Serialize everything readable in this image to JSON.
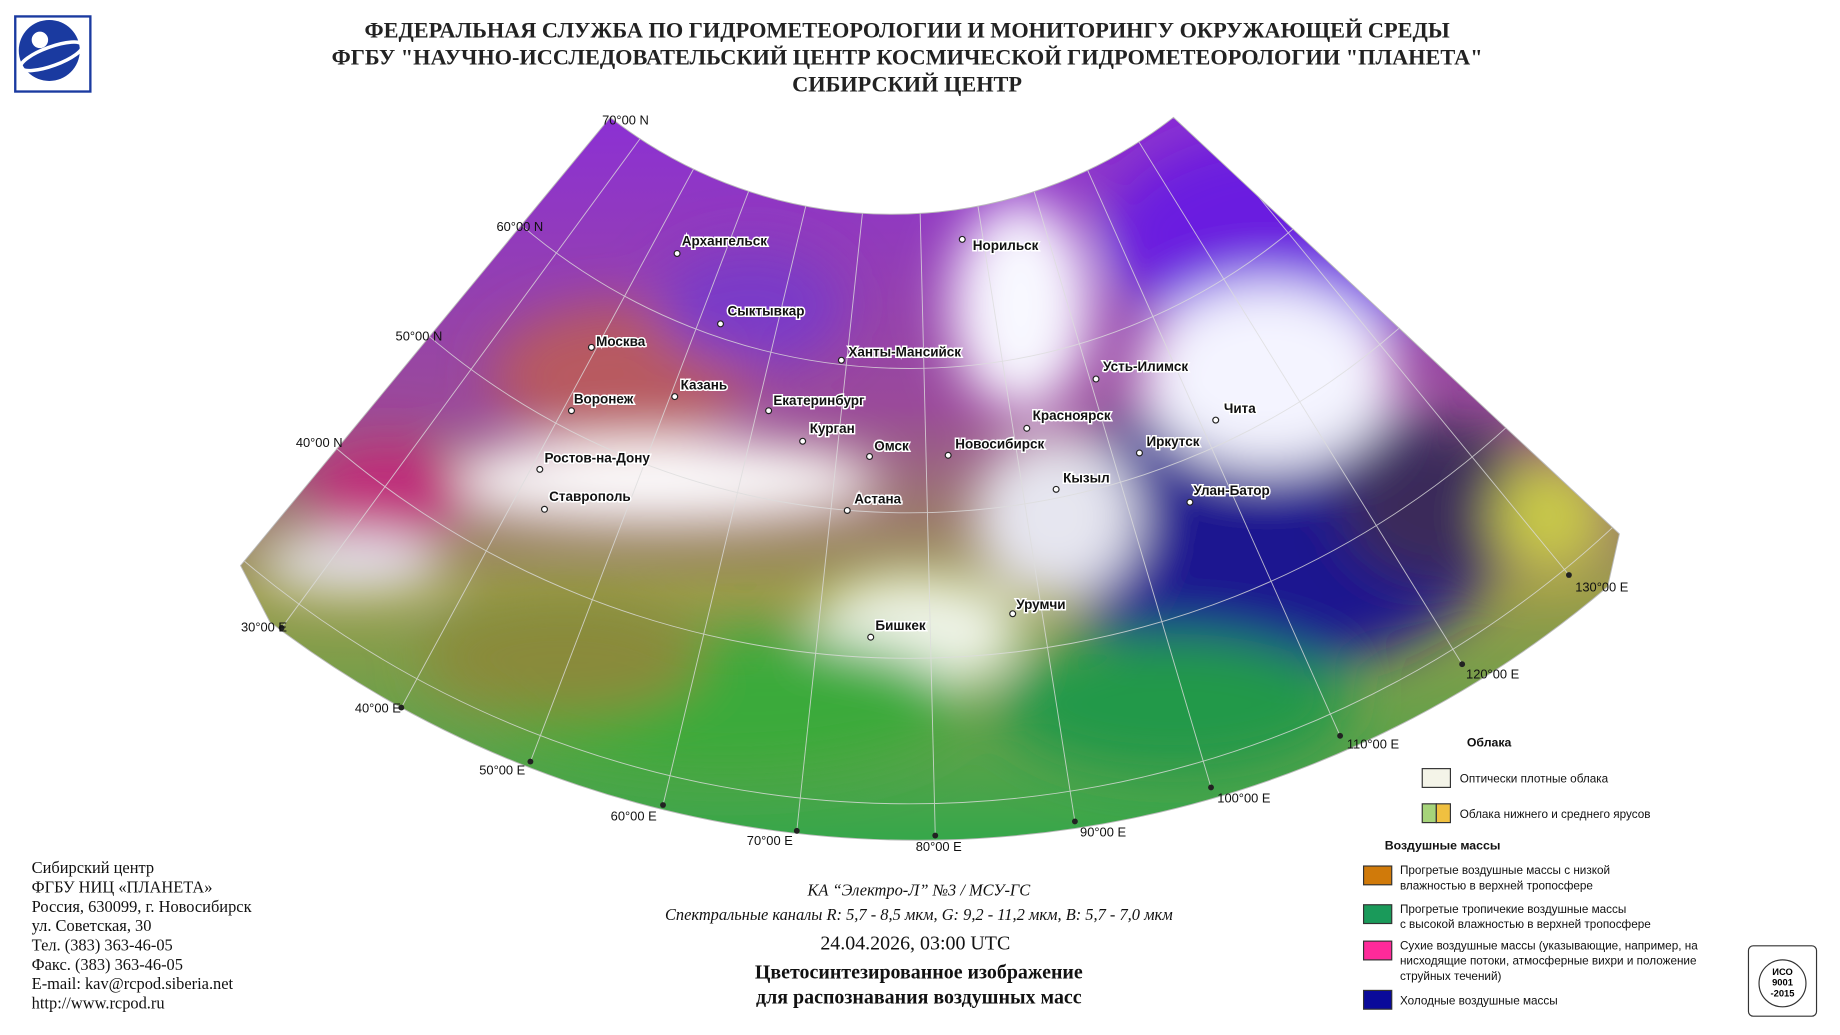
{
  "header": {
    "lines": [
      "ФЕДЕРАЛЬНАЯ СЛУЖБА ПО ГИДРОМЕТЕОРОЛОГИИ И МОНИТОРИНГУ ОКРУЖАЮЩЕЙ СРЕДЫ",
      "ФГБУ \"НАУЧНО-ИССЛЕДОВАТЕЛЬСКИЙ ЦЕНТР КОСМИЧЕСКОЙ ГИДРОМЕТЕОРОЛОГИИ \"ПЛАНЕТА\"",
      "СИБИРСКИЙ ЦЕНТР"
    ]
  },
  "map": {
    "lat_labels": [
      "70°00 N",
      "60°00 N",
      "50°00 N",
      "40°00 N"
    ],
    "lon_labels": [
      "30°00 E",
      "40°00 E",
      "50°00 E",
      "60°00 E",
      "70°00 E",
      "80°00 E",
      "90°00 E",
      "100°00 E",
      "110°00 E",
      "120°00 E",
      "130°00 E"
    ],
    "cities": [
      "Архангельск",
      "Норильск",
      "Сыктывкар",
      "Москва",
      "Ханты-Мансийск",
      "Усть-Илимск",
      "Казань",
      "Воронеж",
      "Екатеринбург",
      "Красноярск",
      "Чита",
      "Курган",
      "Иркутск",
      "Омск",
      "Новосибирск",
      "Ростов-на-Дону",
      "Кызыл",
      "Улан-Батор",
      "Ставрополь",
      "Астана",
      "Урумчи",
      "Бишкек"
    ]
  },
  "legend": {
    "clouds_title": "Облака",
    "clouds": [
      {
        "lines": [
          "Оптически плотные облака"
        ]
      },
      {
        "lines": [
          "Облака нижнего и среднего ярусов"
        ]
      }
    ],
    "air_title": "Воздушные массы",
    "air": [
      {
        "lines": [
          "Прогретые воздушные массы с низкой",
          "влажностью в верхней тропосфере"
        ]
      },
      {
        "lines": [
          "Прогретые тропичекие воздушные массы",
          "с высокой влажностью в верхней тропосфере"
        ]
      },
      {
        "lines": [
          "Сухие воздушные массы (указывающие, например, на",
          "нисходящие потоки, атмосферные вихри и положение",
          "струйных течений)"
        ]
      },
      {
        "lines": [
          "Холодные воздушные массы"
        ]
      }
    ]
  },
  "caption": {
    "satellite": "КА “Электро-Л” №3 / МСУ-ГС",
    "channels": "Спектральные каналы R: 5,7 - 8,5 мкм, G: 9,2 - 11,2 мкм, B: 5,7 - 7,0 мкм",
    "datetime": "24.04.2026, 03:00 UTC",
    "title_lines": [
      "Цветосинтезированное изображение",
      "для распознавания воздушных масс"
    ]
  },
  "contact": {
    "lines": [
      "Сибирский центр",
      "ФГБУ НИЦ «ПЛАНЕТА»",
      "Россия, 630099, г. Новосибирск",
      "ул. Советская, 30",
      "Тел. (383) 363-46-05",
      "Факс. (383) 363-46-05",
      "E-mail: kav@rcpod.siberia.net",
      "http://www.rcpod.ru"
    ]
  },
  "badge": {
    "lines": [
      "ИСО",
      "9001",
      "-2015"
    ]
  }
}
